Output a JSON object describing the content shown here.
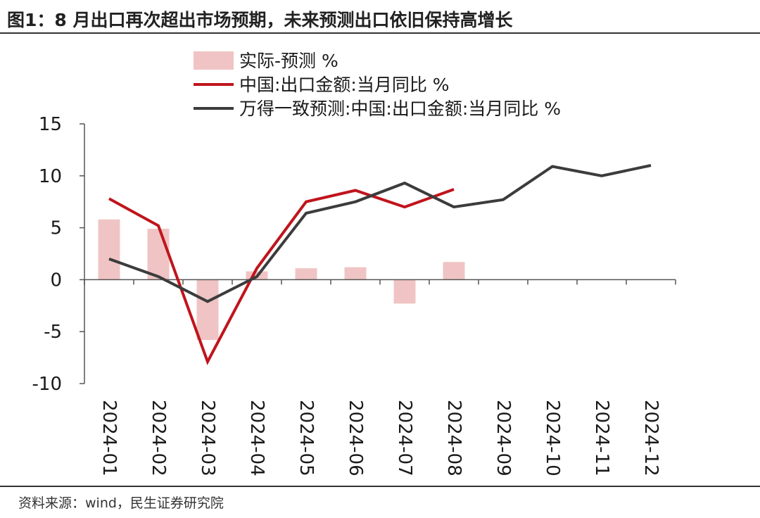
{
  "figure": {
    "title": "图1：8 月出口再次超出市场预期，未来预测出口依旧保持高增长",
    "source": "资料来源：wind，民生证券研究院"
  },
  "chart_data": {
    "type": "bar+line",
    "categories": [
      "2024-01",
      "2024-02",
      "2024-03",
      "2024-04",
      "2024-05",
      "2024-06",
      "2024-07",
      "2024-08",
      "2024-09",
      "2024-10",
      "2024-11",
      "2024-12"
    ],
    "ylim": [
      -10,
      15
    ],
    "yticks": [
      -10,
      -5,
      0,
      5,
      10,
      15
    ],
    "ytick_labels": [
      "-10",
      "-5",
      "0",
      "5",
      "10",
      "15"
    ],
    "series": [
      {
        "name": "实际-预测 %",
        "kind": "bar",
        "color": "#f0c4c4",
        "values": [
          5.8,
          4.9,
          -5.8,
          0.8,
          1.1,
          1.2,
          -2.3,
          1.7,
          null,
          null,
          null,
          null
        ]
      },
      {
        "name": "中国:出口金额:当月同比 %",
        "kind": "line",
        "color": "#c0141c",
        "values": [
          7.8,
          5.2,
          -7.9,
          1.1,
          7.5,
          8.6,
          7.0,
          8.7,
          null,
          null,
          null,
          null
        ]
      },
      {
        "name": "万得一致预测:中国:出口金额:当月同比 %",
        "kind": "line",
        "color": "#3c3c3c",
        "values": [
          2.0,
          0.3,
          -2.1,
          0.3,
          6.4,
          7.5,
          9.3,
          7.0,
          7.7,
          10.9,
          10.0,
          11.0
        ]
      }
    ],
    "legend_position": "top"
  }
}
